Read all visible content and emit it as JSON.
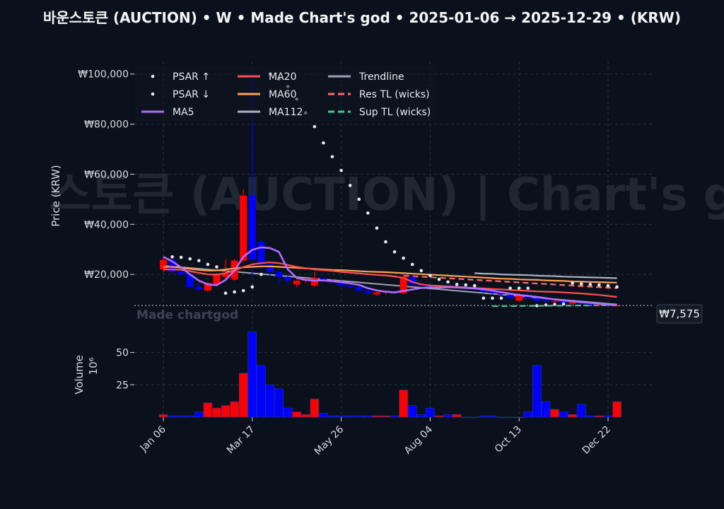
{
  "chart_data": {
    "type": "candlestick",
    "title": "바운스토큰 (AUCTION) • W • Made Chart's god • 2025-01-06 → 2025-12-29 • (KRW)",
    "watermark_main": "스토큰 (AUCTION)  |   Chart's god",
    "watermark_small": "Made chartgod",
    "ylabel": "Price (KRW)",
    "volume_label": "Volume",
    "volume_unit": "10⁶",
    "ylim": [
      0,
      105000
    ],
    "volume_ylim": [
      0,
      70
    ],
    "price_ticks": [
      20000,
      40000,
      60000,
      80000,
      100000
    ],
    "price_tick_labels": [
      "₩20,000",
      "₩40,000",
      "₩60,000",
      "₩80,000",
      "₩100,000"
    ],
    "volume_ticks": [
      25,
      50
    ],
    "volume_tick_labels": [
      "25",
      "50"
    ],
    "x_tick_indices": [
      0,
      10,
      20,
      30,
      40,
      50
    ],
    "x_tick_labels": [
      "Jan 06",
      "Mar 17",
      "May 26",
      "Aug 04",
      "Oct 13",
      "Dec 22"
    ],
    "last_price": 7575,
    "last_price_label": "₩7,575",
    "legend": [
      {
        "label": "PSAR ↑",
        "kind": "dot",
        "color": "#e6e9ef"
      },
      {
        "label": "PSAR ↓",
        "kind": "dot",
        "color": "#e6e9ef"
      },
      {
        "label": "MA5",
        "kind": "line",
        "color": "#b06cff"
      },
      {
        "label": "MA20",
        "kind": "line",
        "color": "#ff4d4d"
      },
      {
        "label": "MA60",
        "kind": "line",
        "color": "#ffa04d"
      },
      {
        "label": "MA112",
        "kind": "line",
        "color": "#aab2c0"
      },
      {
        "label": "Trendline",
        "kind": "line",
        "color": "#9aa3b0"
      },
      {
        "label": "Res TL (wicks)",
        "kind": "dash",
        "color": "#ff6b6b"
      },
      {
        "label": "Sup TL (wicks)",
        "kind": "dash",
        "color": "#3fcf8e"
      }
    ],
    "candles": [
      {
        "o": 22000,
        "h": 27000,
        "l": 21000,
        "c": 25800
      },
      {
        "o": 25800,
        "h": 26500,
        "l": 20000,
        "c": 21000
      },
      {
        "o": 21000,
        "h": 22500,
        "l": 19500,
        "c": 20000
      },
      {
        "o": 20000,
        "h": 21000,
        "l": 14500,
        "c": 15000
      },
      {
        "o": 15000,
        "h": 16500,
        "l": 13000,
        "c": 14000
      },
      {
        "o": 13500,
        "h": 17000,
        "l": 13000,
        "c": 16500
      },
      {
        "o": 16000,
        "h": 20500,
        "l": 15500,
        "c": 20000
      },
      {
        "o": 19000,
        "h": 26000,
        "l": 18000,
        "c": 20500
      },
      {
        "o": 18000,
        "h": 26000,
        "l": 17500,
        "c": 25500
      },
      {
        "o": 25500,
        "h": 54000,
        "l": 24500,
        "c": 51500
      },
      {
        "o": 51500,
        "h": 100000,
        "l": 19000,
        "c": 26000
      },
      {
        "o": 33000,
        "h": 34000,
        "l": 22000,
        "c": 24000
      },
      {
        "o": 24000,
        "h": 25000,
        "l": 19500,
        "c": 21000
      },
      {
        "o": 21000,
        "h": 21500,
        "l": 16000,
        "c": 19000
      },
      {
        "o": 19000,
        "h": 19500,
        "l": 16000,
        "c": 17500
      },
      {
        "o": 16000,
        "h": 18000,
        "l": 15000,
        "c": 17500
      },
      {
        "o": 17500,
        "h": 18500,
        "l": 16500,
        "c": 18000
      },
      {
        "o": 15500,
        "h": 21000,
        "l": 15000,
        "c": 18500
      },
      {
        "o": 18500,
        "h": 19000,
        "l": 16500,
        "c": 17500
      },
      {
        "o": 17500,
        "h": 18000,
        "l": 16500,
        "c": 17000
      },
      {
        "o": 17000,
        "h": 17500,
        "l": 14500,
        "c": 15500
      },
      {
        "o": 15500,
        "h": 16500,
        "l": 14500,
        "c": 15000
      },
      {
        "o": 15000,
        "h": 15500,
        "l": 13000,
        "c": 13500
      },
      {
        "o": 13500,
        "h": 14000,
        "l": 12000,
        "c": 12500
      },
      {
        "o": 12000,
        "h": 13000,
        "l": 11500,
        "c": 12800
      },
      {
        "o": 12800,
        "h": 13500,
        "l": 12000,
        "c": 13200
      },
      {
        "o": 13200,
        "h": 13800,
        "l": 12500,
        "c": 13000
      },
      {
        "o": 12500,
        "h": 20000,
        "l": 12000,
        "c": 19000
      },
      {
        "o": 19000,
        "h": 19500,
        "l": 15500,
        "c": 16000
      },
      {
        "o": 16000,
        "h": 16800,
        "l": 15000,
        "c": 15500
      },
      {
        "o": 15500,
        "h": 16000,
        "l": 14500,
        "c": 15000
      },
      {
        "o": 15000,
        "h": 15800,
        "l": 14500,
        "c": 15200
      },
      {
        "o": 15200,
        "h": 15800,
        "l": 14500,
        "c": 14800
      },
      {
        "o": 14800,
        "h": 15500,
        "l": 14500,
        "c": 15000
      },
      {
        "o": 15000,
        "h": 15300,
        "l": 14000,
        "c": 14500
      },
      {
        "o": 14500,
        "h": 15000,
        "l": 13500,
        "c": 14000
      },
      {
        "o": 14000,
        "h": 14500,
        "l": 12500,
        "c": 13000
      },
      {
        "o": 13000,
        "h": 13500,
        "l": 12000,
        "c": 12500
      },
      {
        "o": 12500,
        "h": 13000,
        "l": 11500,
        "c": 12000
      },
      {
        "o": 11800,
        "h": 12500,
        "l": 10000,
        "c": 10500
      },
      {
        "o": 9500,
        "h": 12500,
        "l": 9000,
        "c": 11500
      },
      {
        "o": 11500,
        "h": 15000,
        "l": 10000,
        "c": 10500
      },
      {
        "o": 10500,
        "h": 11000,
        "l": 9000,
        "c": 9500
      },
      {
        "o": 9500,
        "h": 10000,
        "l": 8500,
        "c": 9000
      },
      {
        "o": 9000,
        "h": 9500,
        "l": 8500,
        "c": 9200
      },
      {
        "o": 9200,
        "h": 9500,
        "l": 8000,
        "c": 8500
      },
      {
        "o": 8300,
        "h": 9500,
        "l": 8000,
        "c": 9000
      },
      {
        "o": 9000,
        "h": 9200,
        "l": 8000,
        "c": 8200
      },
      {
        "o": 8200,
        "h": 8500,
        "l": 7500,
        "c": 7800
      },
      {
        "o": 7800,
        "h": 8200,
        "l": 7500,
        "c": 7900
      },
      {
        "o": 7900,
        "h": 8000,
        "l": 7300,
        "c": 7500
      },
      {
        "o": 7300,
        "h": 8000,
        "l": 7000,
        "c": 7575
      }
    ],
    "volume": [
      2,
      1,
      1,
      1,
      4,
      11,
      7,
      9,
      12,
      34,
      66,
      40,
      25,
      22,
      7,
      4,
      2,
      14,
      3,
      1,
      1,
      1,
      1,
      1,
      1,
      1,
      1,
      21,
      9,
      2,
      7,
      1,
      2,
      2,
      0,
      0,
      1,
      1,
      0,
      0,
      0,
      4,
      40,
      12,
      6,
      4,
      2,
      10,
      1,
      1,
      1,
      12
    ],
    "ma5": [
      27000,
      25200,
      22800,
      20000,
      17500,
      16000,
      15700,
      17800,
      21500,
      27000,
      29800,
      30800,
      30500,
      29000,
      22000,
      18600,
      17800,
      17500,
      17600,
      17300,
      16900,
      16400,
      15800,
      14500,
      13600,
      13100,
      12800,
      13400,
      14000,
      14600,
      14800,
      14700,
      14900,
      14800,
      14600,
      14400,
      14000,
      13500,
      12900,
      12300,
      11800,
      11400,
      11000,
      10500,
      10000,
      9600,
      9300,
      8900,
      8600,
      8300,
      7950,
      7700
    ],
    "ma20": [
      22000,
      22000,
      21800,
      21300,
      20600,
      20000,
      19900,
      20500,
      21500,
      23000,
      24000,
      24500,
      24800,
      24500,
      23800,
      23000,
      22500,
      22000,
      21700,
      21400,
      21000,
      20700,
      20400,
      20100,
      19800,
      19600,
      19200,
      18600,
      17000,
      16000,
      15600,
      15400,
      15200,
      15000,
      14800,
      14600,
      14400,
      14200,
      14000,
      13800,
      13600,
      13400,
      13200,
      13100,
      13000,
      12800,
      12600,
      12400,
      12100,
      11800,
      11400,
      11000
    ],
    "ma60": [
      23000,
      23000,
      22600,
      22200,
      21800,
      21500,
      21600,
      22000,
      22400,
      22800,
      23000,
      23200,
      23200,
      23000,
      22800,
      22600,
      22400,
      22200,
      22000,
      21800,
      21700,
      21500,
      21300,
      21100,
      21000,
      20900,
      20700,
      20500,
      20300,
      20100,
      19900,
      19700,
      19500,
      19300,
      19100,
      18900,
      18700,
      18500,
      18300,
      18200,
      18000,
      17900,
      17800,
      17600,
      17500,
      17400,
      17200,
      17100,
      17000,
      16900,
      16800,
      16700
    ],
    "ma112_start_index": 35,
    "ma112": [
      20500,
      20300,
      20200,
      20000,
      19900,
      19800,
      19700,
      19500,
      19400,
      19300,
      19100,
      19000,
      18900,
      18800,
      18700,
      18600,
      18500
    ],
    "trendline": [
      [
        0,
        23500
      ],
      [
        51,
        8000
      ]
    ],
    "res_tl": [
      [
        27,
        19500
      ],
      [
        51,
        14500
      ]
    ],
    "sup_tl": [
      [
        37,
        7300
      ],
      [
        51,
        7700
      ]
    ],
    "psar": [
      {
        "i": 1,
        "v": 27000
      },
      {
        "i": 2,
        "v": 26800
      },
      {
        "i": 3,
        "v": 26200
      },
      {
        "i": 4,
        "v": 25500
      },
      {
        "i": 5,
        "v": 24000
      },
      {
        "i": 6,
        "v": 23000
      },
      {
        "i": 7,
        "v": 12500
      },
      {
        "i": 8,
        "v": 13000
      },
      {
        "i": 9,
        "v": 13500
      },
      {
        "i": 10,
        "v": 15000
      },
      {
        "i": 11,
        "v": 20000
      },
      {
        "i": 12,
        "v": 100000
      },
      {
        "i": 13,
        "v": 98000
      },
      {
        "i": 14,
        "v": 95000
      },
      {
        "i": 15,
        "v": 90000
      },
      {
        "i": 16,
        "v": 84500
      },
      {
        "i": 17,
        "v": 79000
      },
      {
        "i": 18,
        "v": 72500
      },
      {
        "i": 19,
        "v": 67000
      },
      {
        "i": 20,
        "v": 61500
      },
      {
        "i": 21,
        "v": 55500
      },
      {
        "i": 22,
        "v": 50000
      },
      {
        "i": 23,
        "v": 44500
      },
      {
        "i": 24,
        "v": 38500
      },
      {
        "i": 25,
        "v": 33000
      },
      {
        "i": 26,
        "v": 29000
      },
      {
        "i": 27,
        "v": 26500
      },
      {
        "i": 28,
        "v": 24000
      },
      {
        "i": 29,
        "v": 21500
      },
      {
        "i": 30,
        "v": 19500
      },
      {
        "i": 31,
        "v": 18000
      },
      {
        "i": 32,
        "v": 17000
      },
      {
        "i": 33,
        "v": 16000
      },
      {
        "i": 34,
        "v": 15800
      },
      {
        "i": 35,
        "v": 15500
      },
      {
        "i": 36,
        "v": 10500
      },
      {
        "i": 37,
        "v": 10500
      },
      {
        "i": 38,
        "v": 10500
      },
      {
        "i": 39,
        "v": 14500
      },
      {
        "i": 40,
        "v": 14500
      },
      {
        "i": 41,
        "v": 14500
      },
      {
        "i": 42,
        "v": 7500
      },
      {
        "i": 43,
        "v": 7800
      },
      {
        "i": 44,
        "v": 8000
      },
      {
        "i": 45,
        "v": 8200
      },
      {
        "i": 46,
        "v": 16500
      },
      {
        "i": 47,
        "v": 16200
      },
      {
        "i": 48,
        "v": 16000
      },
      {
        "i": 49,
        "v": 15800
      },
      {
        "i": 50,
        "v": 15500
      },
      {
        "i": 51,
        "v": 15000
      }
    ]
  },
  "colors": {
    "background": "#0b111c",
    "grid": "#2a3342",
    "up": "#ff0000",
    "down": "#0000ff",
    "psar": "#e6e9ef",
    "ma5": "#b06cff",
    "ma20": "#ff4d4d",
    "ma60": "#ffa04d",
    "ma112": "#aab2c0",
    "trendline": "#9aa3b0",
    "res_tl": "#ff6b6b",
    "sup_tl": "#3fcf8e"
  }
}
